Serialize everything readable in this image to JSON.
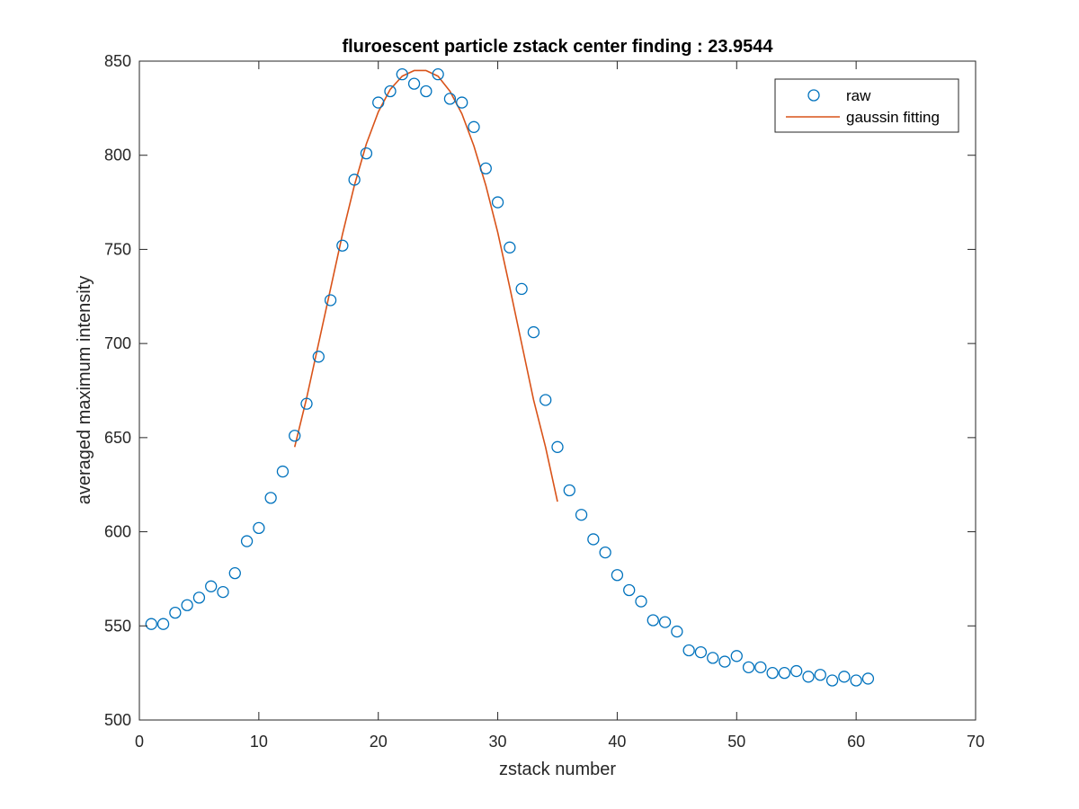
{
  "chart_data": {
    "type": "scatter",
    "title": "fluroescent particle zstack center finding : 23.9544",
    "xlabel": "zstack number",
    "ylabel": "averaged maximum intensity",
    "xlim": [
      0,
      70
    ],
    "ylim": [
      500,
      850
    ],
    "xticks": [
      0,
      10,
      20,
      30,
      40,
      50,
      60,
      70
    ],
    "yticks": [
      500,
      550,
      600,
      650,
      700,
      750,
      800,
      850
    ],
    "grid": false,
    "box": true,
    "legend_position": "top-right",
    "series": [
      {
        "name": "raw",
        "kind": "markers",
        "marker": "circle-open",
        "color": "#0072BD",
        "x": [
          1,
          2,
          3,
          4,
          5,
          6,
          7,
          8,
          9,
          10,
          11,
          12,
          13,
          14,
          15,
          16,
          17,
          18,
          19,
          20,
          21,
          22,
          23,
          24,
          25,
          26,
          27,
          28,
          29,
          30,
          31,
          32,
          33,
          34,
          35,
          36,
          37,
          38,
          39,
          40,
          41,
          42,
          43,
          44,
          45,
          46,
          47,
          48,
          49,
          50,
          51,
          52,
          53,
          54,
          55,
          56,
          57,
          58,
          59,
          60,
          61
        ],
        "y": [
          551,
          551,
          557,
          561,
          565,
          571,
          568,
          578,
          595,
          602,
          618,
          632,
          651,
          668,
          693,
          723,
          752,
          787,
          801,
          828,
          834,
          843,
          838,
          834,
          843,
          830,
          828,
          815,
          793,
          775,
          751,
          729,
          706,
          670,
          645,
          622,
          609,
          596,
          589,
          577,
          569,
          563,
          553,
          552,
          547,
          537,
          536,
          533,
          531,
          534,
          528,
          528,
          525,
          525,
          526,
          523,
          524,
          521,
          523,
          521,
          522
        ]
      },
      {
        "name": "gaussin fitting",
        "kind": "line",
        "color": "#D95319",
        "x": [
          13,
          14,
          15,
          16,
          17,
          18,
          19,
          20,
          21,
          22,
          23,
          24,
          25,
          26,
          27,
          28,
          29,
          30,
          31,
          32,
          33,
          34,
          35
        ],
        "y": [
          645,
          671,
          700,
          729,
          758,
          784,
          806,
          823,
          835,
          842,
          845,
          845,
          842,
          834,
          822,
          805,
          784,
          759,
          730,
          700,
          670,
          645,
          616
        ]
      }
    ]
  }
}
